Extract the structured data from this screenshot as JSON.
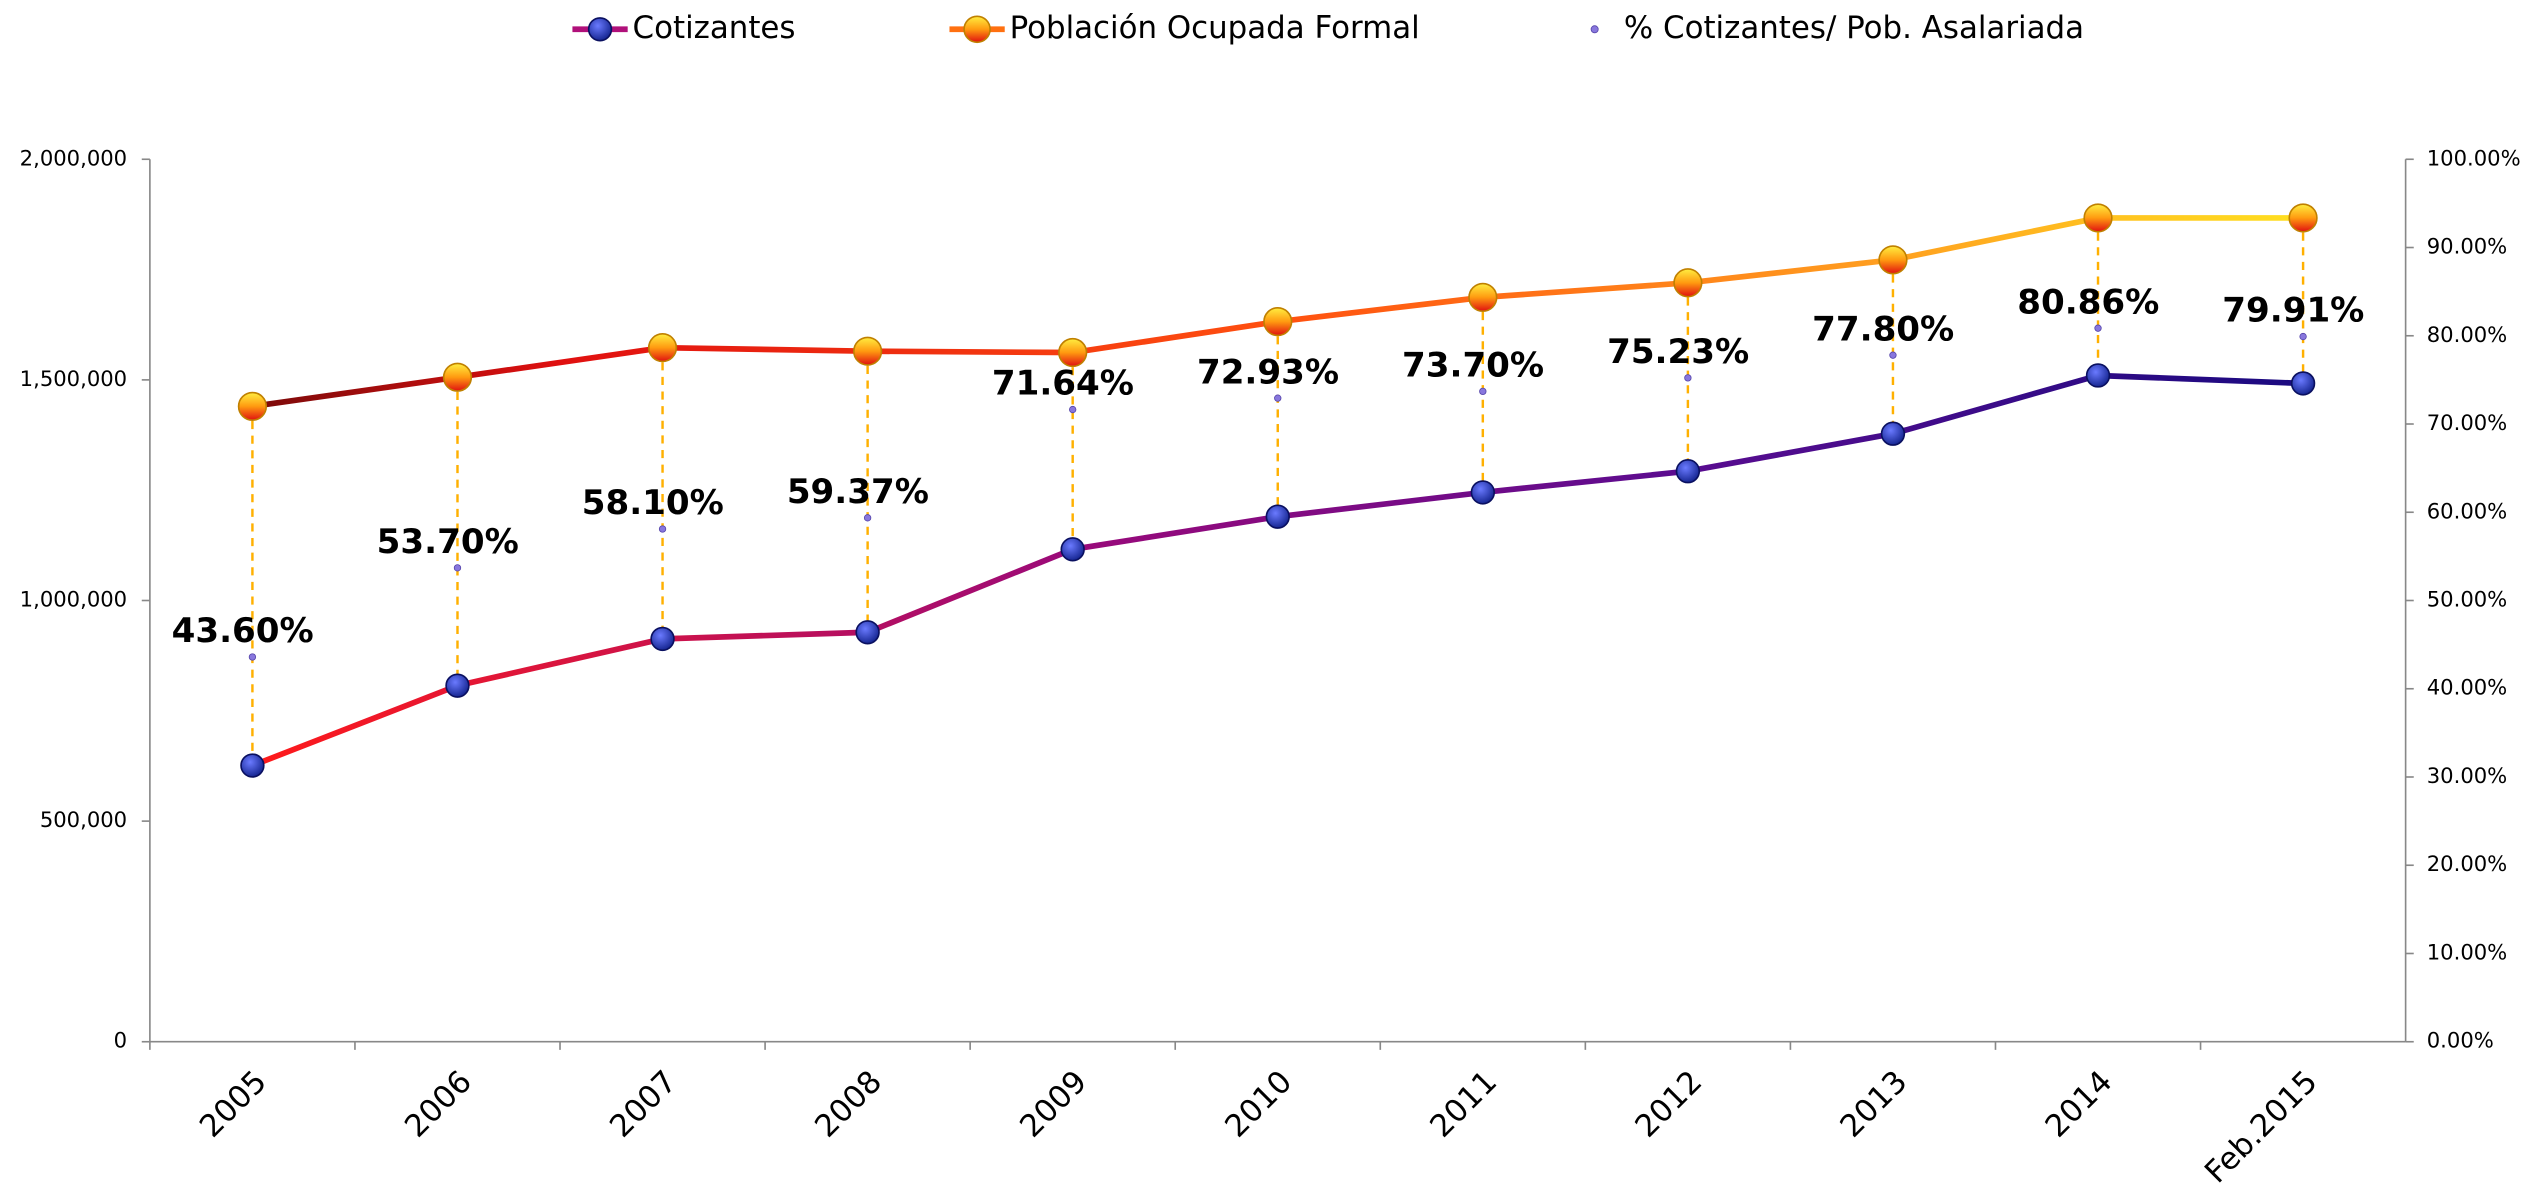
{
  "chart_data": {
    "type": "line",
    "categories": [
      "2005",
      "2006",
      "2007",
      "2008",
      "2009",
      "2010",
      "2011",
      "2012",
      "2013",
      "2014",
      "Feb.2015"
    ],
    "series": [
      {
        "name": "Cotizantes",
        "color": "#2233cc",
        "values": [
          626000,
          807000,
          913000,
          928000,
          1116000,
          1190000,
          1245000,
          1293000,
          1378000,
          1510000,
          1492000
        ]
      },
      {
        "name": "Población Ocupada Formal",
        "color": "#ff9900",
        "values": [
          1440000,
          1506000,
          1573000,
          1565000,
          1562000,
          1632000,
          1687000,
          1720000,
          1772000,
          1867000,
          1867000
        ]
      },
      {
        "name": "% Cotizantes/ Pob. Asalariada",
        "color": "#8877dd",
        "axis": "y2",
        "values": [
          43.6,
          53.7,
          58.1,
          59.37,
          71.64,
          72.93,
          73.7,
          75.23,
          77.8,
          80.86,
          79.91
        ],
        "value_labels": [
          "43.60%",
          "53.70%",
          "58.10%",
          "59.37%",
          "71.64%",
          "72.93%",
          "73.70%",
          "75.23%",
          "77.80%",
          "80.86%",
          "79.91%"
        ]
      }
    ],
    "ylim": [
      0,
      2000000
    ],
    "yticks": [
      0,
      {
        "value": 500000,
        "label": "500,000"
      },
      {
        "value": 1000000,
        "label": "1,000,000"
      },
      {
        "value": 1500000,
        "label": "1,500,000"
      },
      {
        "value": 2000000,
        "label": "2,000,000"
      }
    ],
    "y2lim": [
      0,
      100
    ],
    "y2ticks": [
      {
        "value": 0,
        "label": "0.00%"
      },
      {
        "value": 10,
        "label": "10.00%"
      },
      {
        "value": 20,
        "label": "20.00%"
      },
      {
        "value": 30,
        "label": "30.00%"
      },
      {
        "value": 40,
        "label": "40.00%"
      },
      {
        "value": 50,
        "label": "50.00%"
      },
      {
        "value": 60,
        "label": "60.00%"
      },
      {
        "value": 70,
        "label": "70.00%"
      },
      {
        "value": 80,
        "label": "80.00%"
      },
      {
        "value": 90,
        "label": "90.00%"
      },
      {
        "value": 100,
        "label": "100.00%"
      }
    ],
    "legend": "top"
  }
}
